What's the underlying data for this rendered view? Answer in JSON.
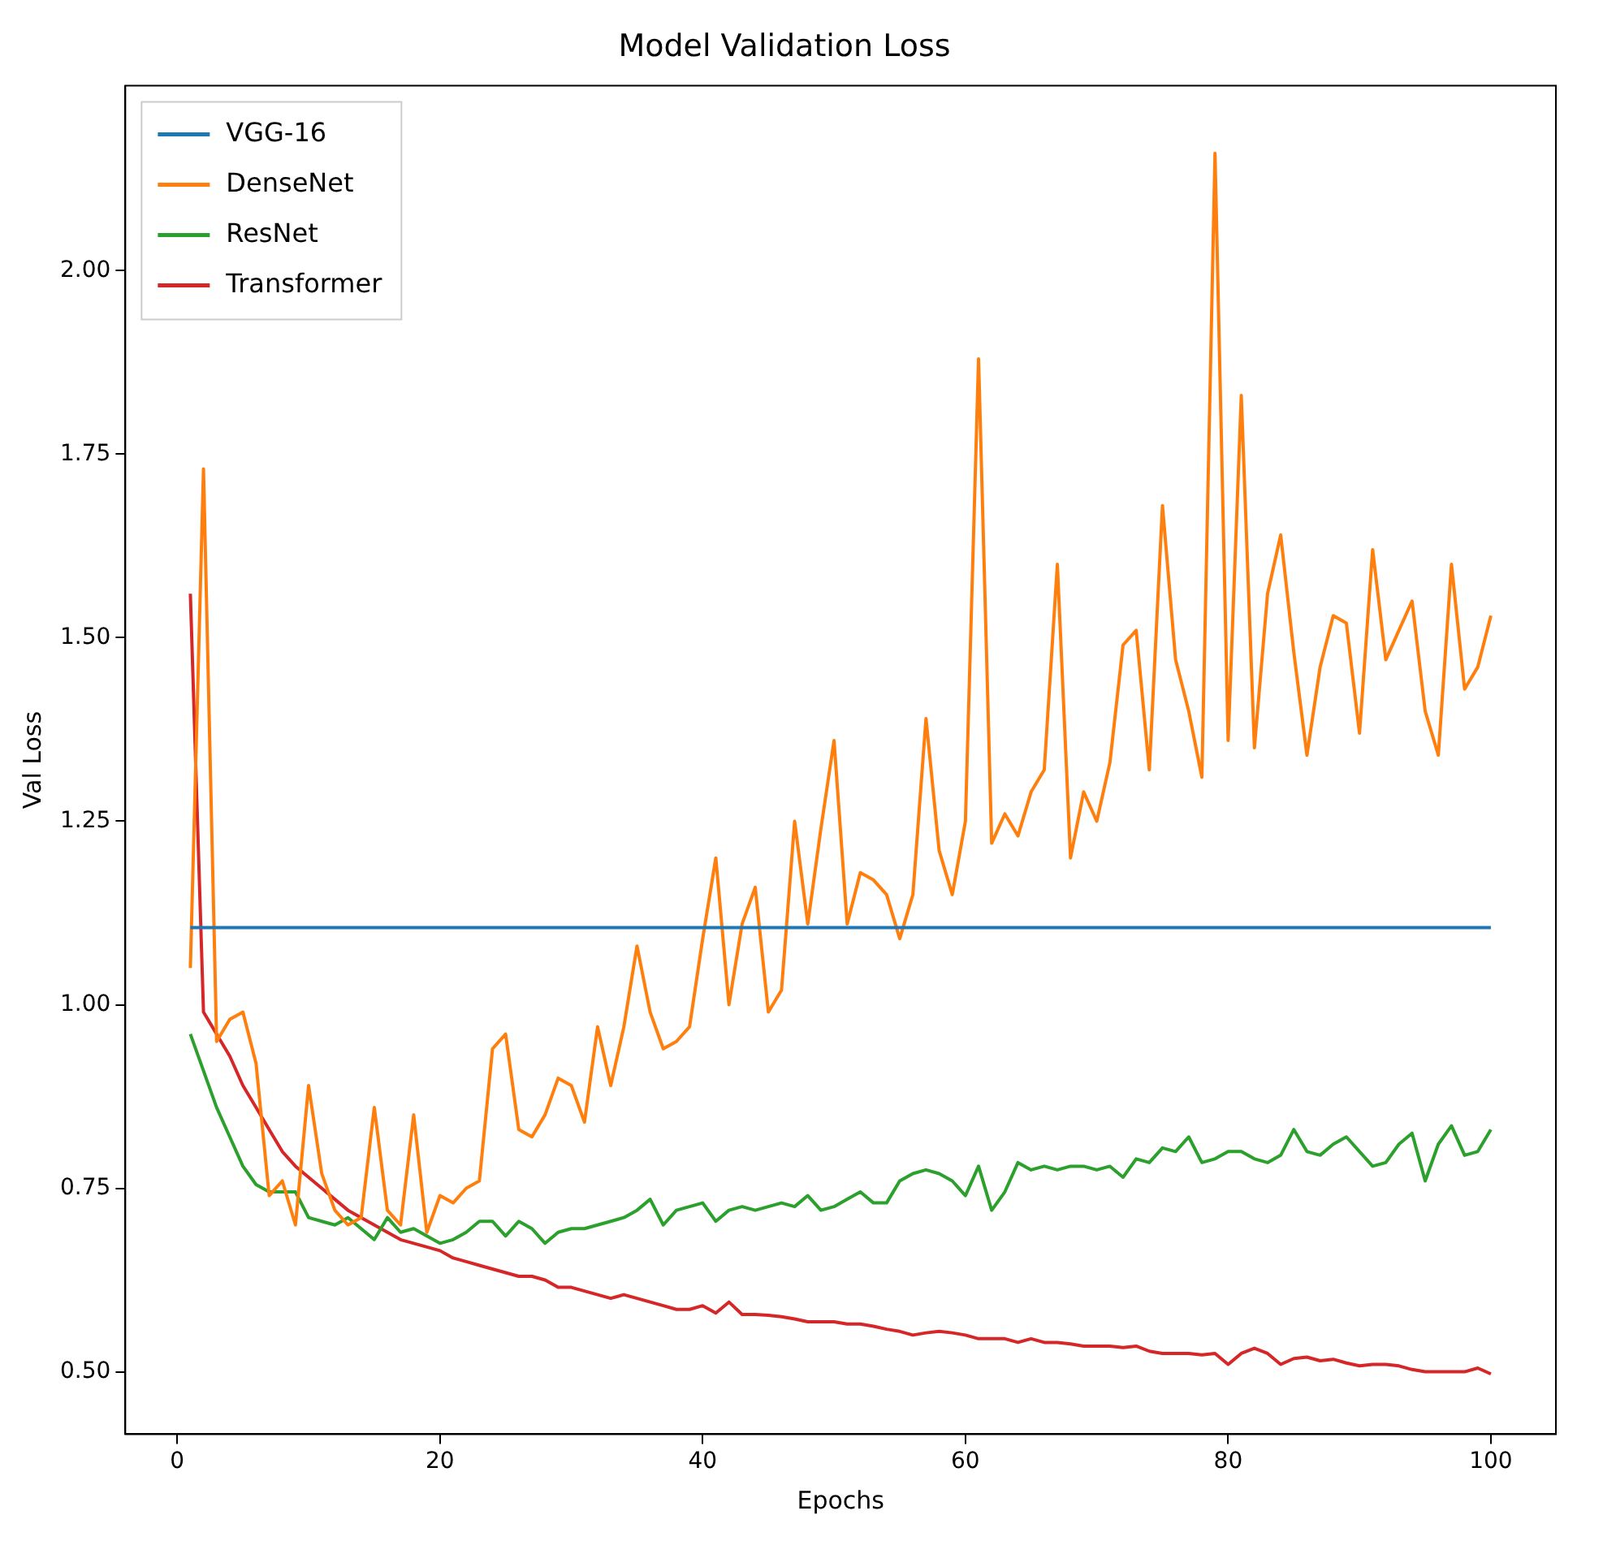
{
  "chart_data": {
    "type": "line",
    "title": "Model Validation Loss",
    "xlabel": "Epochs",
    "ylabel": "Val Loss",
    "x": [
      1,
      2,
      3,
      4,
      5,
      6,
      7,
      8,
      9,
      10,
      11,
      12,
      13,
      14,
      15,
      16,
      17,
      18,
      19,
      20,
      21,
      22,
      23,
      24,
      25,
      26,
      27,
      28,
      29,
      30,
      31,
      32,
      33,
      34,
      35,
      36,
      37,
      38,
      39,
      40,
      41,
      42,
      43,
      44,
      45,
      46,
      47,
      48,
      49,
      50,
      51,
      52,
      53,
      54,
      55,
      56,
      57,
      58,
      59,
      60,
      61,
      62,
      63,
      64,
      65,
      66,
      67,
      68,
      69,
      70,
      71,
      72,
      73,
      74,
      75,
      76,
      77,
      78,
      79,
      80,
      81,
      82,
      83,
      84,
      85,
      86,
      87,
      88,
      89,
      90,
      91,
      92,
      93,
      94,
      95,
      96,
      97,
      98,
      99,
      100
    ],
    "series": [
      {
        "name": "VGG-16",
        "color": "#1f77b4",
        "values": [
          1.105,
          1.105,
          1.105,
          1.105,
          1.105,
          1.105,
          1.105,
          1.105,
          1.105,
          1.105,
          1.105,
          1.105,
          1.105,
          1.105,
          1.105,
          1.105,
          1.105,
          1.105,
          1.105,
          1.105,
          1.105,
          1.105,
          1.105,
          1.105,
          1.105,
          1.105,
          1.105,
          1.105,
          1.105,
          1.105,
          1.105,
          1.105,
          1.105,
          1.105,
          1.105,
          1.105,
          1.105,
          1.105,
          1.105,
          1.105,
          1.105,
          1.105,
          1.105,
          1.105,
          1.105,
          1.105,
          1.105,
          1.105,
          1.105,
          1.105,
          1.105,
          1.105,
          1.105,
          1.105,
          1.105,
          1.105,
          1.105,
          1.105,
          1.105,
          1.105,
          1.105,
          1.105,
          1.105,
          1.105,
          1.105,
          1.105,
          1.105,
          1.105,
          1.105,
          1.105,
          1.105,
          1.105,
          1.105,
          1.105,
          1.105,
          1.105,
          1.105,
          1.105,
          1.105,
          1.105,
          1.105,
          1.105,
          1.105,
          1.105,
          1.105,
          1.105,
          1.105,
          1.105,
          1.105,
          1.105,
          1.105,
          1.105,
          1.105,
          1.105,
          1.105,
          1.105,
          1.105,
          1.105,
          1.105,
          1.105
        ]
      },
      {
        "name": "DenseNet",
        "color": "#ff7f0e",
        "values": [
          1.05,
          1.73,
          0.95,
          0.98,
          0.99,
          0.92,
          0.74,
          0.76,
          0.7,
          0.89,
          0.77,
          0.72,
          0.7,
          0.71,
          0.86,
          0.72,
          0.7,
          0.85,
          0.69,
          0.74,
          0.73,
          0.75,
          0.76,
          0.94,
          0.96,
          0.83,
          0.82,
          0.85,
          0.9,
          0.89,
          0.84,
          0.97,
          0.89,
          0.97,
          1.08,
          0.99,
          0.94,
          0.95,
          0.97,
          1.09,
          1.2,
          1.0,
          1.11,
          1.16,
          0.99,
          1.02,
          1.25,
          1.11,
          1.24,
          1.36,
          1.11,
          1.18,
          1.17,
          1.15,
          1.09,
          1.15,
          1.39,
          1.21,
          1.15,
          1.25,
          1.88,
          1.22,
          1.26,
          1.23,
          1.29,
          1.32,
          1.6,
          1.2,
          1.29,
          1.25,
          1.33,
          1.49,
          1.51,
          1.32,
          1.68,
          1.47,
          1.4,
          1.31,
          2.16,
          1.36,
          1.83,
          1.35,
          1.56,
          1.64,
          1.48,
          1.34,
          1.46,
          1.53,
          1.52,
          1.37,
          1.62,
          1.47,
          1.51,
          1.55,
          1.4,
          1.34,
          1.6,
          1.43,
          1.46,
          1.53
        ]
      },
      {
        "name": "ResNet",
        "color": "#2ca02c",
        "values": [
          0.96,
          0.91,
          0.86,
          0.82,
          0.78,
          0.755,
          0.745,
          0.745,
          0.745,
          0.71,
          0.705,
          0.7,
          0.71,
          0.695,
          0.68,
          0.71,
          0.69,
          0.695,
          0.685,
          0.675,
          0.68,
          0.69,
          0.705,
          0.705,
          0.685,
          0.705,
          0.695,
          0.675,
          0.69,
          0.695,
          0.695,
          0.7,
          0.705,
          0.71,
          0.72,
          0.735,
          0.7,
          0.72,
          0.725,
          0.73,
          0.705,
          0.72,
          0.725,
          0.72,
          0.725,
          0.73,
          0.725,
          0.74,
          0.72,
          0.725,
          0.735,
          0.745,
          0.73,
          0.73,
          0.76,
          0.77,
          0.775,
          0.77,
          0.76,
          0.74,
          0.78,
          0.72,
          0.745,
          0.785,
          0.775,
          0.78,
          0.775,
          0.78,
          0.78,
          0.775,
          0.78,
          0.765,
          0.79,
          0.785,
          0.805,
          0.8,
          0.82,
          0.785,
          0.79,
          0.8,
          0.8,
          0.79,
          0.785,
          0.795,
          0.83,
          0.8,
          0.795,
          0.81,
          0.82,
          0.8,
          0.78,
          0.785,
          0.81,
          0.825,
          0.76,
          0.81,
          0.835,
          0.795,
          0.8,
          0.83
        ]
      },
      {
        "name": "Transformer",
        "color": "#d62728",
        "values": [
          1.56,
          0.99,
          0.96,
          0.93,
          0.89,
          0.86,
          0.83,
          0.8,
          0.78,
          0.765,
          0.75,
          0.735,
          0.72,
          0.71,
          0.7,
          0.69,
          0.68,
          0.675,
          0.67,
          0.665,
          0.655,
          0.65,
          0.645,
          0.64,
          0.635,
          0.63,
          0.63,
          0.625,
          0.615,
          0.615,
          0.61,
          0.605,
          0.6,
          0.605,
          0.6,
          0.595,
          0.59,
          0.585,
          0.585,
          0.59,
          0.58,
          0.595,
          0.578,
          0.578,
          0.577,
          0.575,
          0.572,
          0.568,
          0.568,
          0.568,
          0.565,
          0.565,
          0.562,
          0.558,
          0.555,
          0.55,
          0.553,
          0.555,
          0.553,
          0.55,
          0.545,
          0.545,
          0.545,
          0.54,
          0.545,
          0.54,
          0.54,
          0.538,
          0.535,
          0.535,
          0.535,
          0.533,
          0.535,
          0.528,
          0.525,
          0.525,
          0.525,
          0.523,
          0.525,
          0.51,
          0.525,
          0.532,
          0.525,
          0.51,
          0.518,
          0.52,
          0.515,
          0.517,
          0.512,
          0.508,
          0.51,
          0.51,
          0.508,
          0.503,
          0.5,
          0.5,
          0.5,
          0.5,
          0.505,
          0.497
        ]
      }
    ],
    "xlim": [
      -3.95,
      104.95
    ],
    "xticks": [
      0,
      20,
      40,
      60,
      80,
      100
    ],
    "ylim": [
      0.415,
      2.252
    ],
    "yticks": [
      {
        "value": 0.5,
        "label": "0.50"
      },
      {
        "value": 0.75,
        "label": "0.75"
      },
      {
        "value": 1.0,
        "label": "1.00"
      },
      {
        "value": 1.25,
        "label": "1.25"
      },
      {
        "value": 1.5,
        "label": "1.50"
      },
      {
        "value": 1.75,
        "label": "1.75"
      },
      {
        "value": 2.0,
        "label": "2.00"
      }
    ],
    "grid": false,
    "legend": "top left",
    "marker": "none",
    "line_style": "solid"
  }
}
